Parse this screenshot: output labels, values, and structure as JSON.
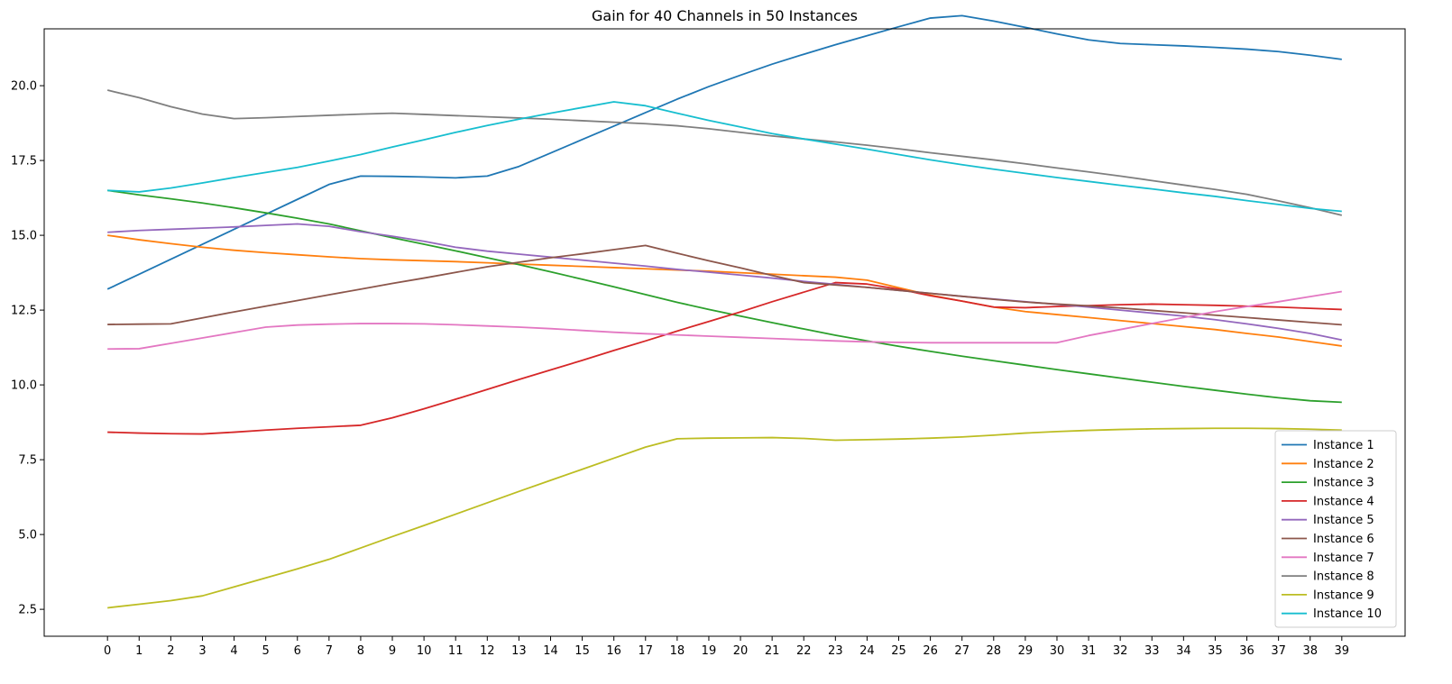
{
  "chart_data": {
    "type": "line",
    "title": "Gain for 40 Channels in 50 Instances",
    "xlabel": "",
    "ylabel": "",
    "x": [
      0,
      1,
      2,
      3,
      4,
      5,
      6,
      7,
      8,
      9,
      10,
      11,
      12,
      13,
      14,
      15,
      16,
      17,
      18,
      19,
      20,
      21,
      22,
      23,
      24,
      25,
      26,
      27,
      28,
      29,
      30,
      31,
      32,
      33,
      34,
      35,
      36,
      37,
      38,
      39
    ],
    "xlim": [
      -2,
      41
    ],
    "ylim": [
      1.6,
      21.9
    ],
    "yticks": [
      2.5,
      5.0,
      7.5,
      10.0,
      12.5,
      15.0,
      17.5,
      20.0
    ],
    "ytick_labels": [
      "2.5",
      "5.0",
      "7.5",
      "10.0",
      "12.5",
      "15.0",
      "17.5",
      "20.0"
    ],
    "grid": false,
    "legend_position": "lower-right",
    "series": [
      {
        "name": "Instance 1",
        "color": "#1f77b4",
        "values": [
          13.2,
          13.7,
          14.2,
          14.7,
          15.2,
          15.7,
          16.2,
          16.7,
          16.98,
          16.97,
          16.95,
          16.92,
          16.98,
          17.3,
          17.75,
          18.2,
          18.65,
          19.1,
          19.55,
          19.97,
          20.35,
          20.72,
          21.05,
          21.37,
          21.67,
          21.97,
          22.26,
          22.34,
          22.16,
          21.95,
          21.73,
          21.53,
          21.41,
          21.37,
          21.33,
          21.28,
          21.22,
          21.14,
          21.02,
          20.88
        ]
      },
      {
        "name": "Instance 2",
        "color": "#ff7f0e",
        "values": [
          15.0,
          14.85,
          14.72,
          14.6,
          14.5,
          14.42,
          14.35,
          14.28,
          14.22,
          14.18,
          14.15,
          14.12,
          14.08,
          14.04,
          14.0,
          13.96,
          13.92,
          13.88,
          13.84,
          13.8,
          13.75,
          13.7,
          13.65,
          13.6,
          13.5,
          13.25,
          13.0,
          12.8,
          12.6,
          12.45,
          12.35,
          12.25,
          12.15,
          12.05,
          11.95,
          11.85,
          11.72,
          11.6,
          11.45,
          11.3
        ]
      },
      {
        "name": "Instance 3",
        "color": "#2ca02c",
        "values": [
          16.5,
          16.35,
          16.22,
          16.08,
          15.92,
          15.75,
          15.57,
          15.38,
          15.15,
          14.92,
          14.7,
          14.48,
          14.25,
          14.02,
          13.78,
          13.53,
          13.28,
          13.02,
          12.76,
          12.52,
          12.3,
          12.08,
          11.87,
          11.66,
          11.47,
          11.29,
          11.12,
          10.96,
          10.81,
          10.66,
          10.51,
          10.37,
          10.23,
          10.09,
          9.95,
          9.82,
          9.69,
          9.57,
          9.47,
          9.42
        ]
      },
      {
        "name": "Instance 4",
        "color": "#d62728",
        "values": [
          8.42,
          8.39,
          8.37,
          8.36,
          8.42,
          8.49,
          8.55,
          8.6,
          8.65,
          8.9,
          9.2,
          9.52,
          9.85,
          10.18,
          10.5,
          10.82,
          11.15,
          11.47,
          11.8,
          12.12,
          12.44,
          12.78,
          13.1,
          13.42,
          13.37,
          13.2,
          12.98,
          12.8,
          12.6,
          12.58,
          12.62,
          12.65,
          12.68,
          12.7,
          12.68,
          12.66,
          12.63,
          12.6,
          12.56,
          12.52
        ]
      },
      {
        "name": "Instance 5",
        "color": "#9467bd",
        "values": [
          15.1,
          15.16,
          15.2,
          15.24,
          15.28,
          15.33,
          15.38,
          15.3,
          15.12,
          14.97,
          14.8,
          14.6,
          14.47,
          14.37,
          14.27,
          14.17,
          14.07,
          13.97,
          13.86,
          13.77,
          13.67,
          13.57,
          13.46,
          13.36,
          13.26,
          13.16,
          13.06,
          12.96,
          12.87,
          12.78,
          12.69,
          12.6,
          12.5,
          12.4,
          12.3,
          12.18,
          12.04,
          11.89,
          11.72,
          11.5
        ]
      },
      {
        "name": "Instance 6",
        "color": "#8c564b",
        "values": [
          12.02,
          12.03,
          12.04,
          12.24,
          12.44,
          12.63,
          12.82,
          13.01,
          13.2,
          13.39,
          13.57,
          13.76,
          13.95,
          14.1,
          14.25,
          14.38,
          14.52,
          14.66,
          14.4,
          14.15,
          13.91,
          13.66,
          13.42,
          13.34,
          13.26,
          13.16,
          13.06,
          12.96,
          12.86,
          12.77,
          12.7,
          12.64,
          12.57,
          12.49,
          12.41,
          12.33,
          12.25,
          12.17,
          12.09,
          12.01
        ]
      },
      {
        "name": "Instance 7",
        "color": "#e377c2",
        "values": [
          11.2,
          11.21,
          11.39,
          11.57,
          11.75,
          11.93,
          12.0,
          12.03,
          12.05,
          12.05,
          12.04,
          12.01,
          11.97,
          11.93,
          11.88,
          11.82,
          11.76,
          11.71,
          11.67,
          11.63,
          11.59,
          11.55,
          11.51,
          11.47,
          11.44,
          11.42,
          11.41,
          11.41,
          11.41,
          11.41,
          11.41,
          11.65,
          11.85,
          12.05,
          12.25,
          12.45,
          12.62,
          12.78,
          12.95,
          13.12
        ]
      },
      {
        "name": "Instance 8",
        "color": "#7f7f7f",
        "values": [
          19.85,
          19.6,
          19.3,
          19.05,
          18.9,
          18.93,
          18.97,
          19.01,
          19.05,
          19.08,
          19.04,
          19.0,
          18.96,
          18.92,
          18.88,
          18.83,
          18.78,
          18.73,
          18.66,
          18.56,
          18.44,
          18.32,
          18.22,
          18.12,
          18.01,
          17.89,
          17.76,
          17.64,
          17.52,
          17.39,
          17.25,
          17.12,
          16.98,
          16.83,
          16.68,
          16.53,
          16.37,
          16.15,
          15.92,
          15.67
        ]
      },
      {
        "name": "Instance 9",
        "color": "#bcbd22",
        "values": [
          2.55,
          2.67,
          2.79,
          2.95,
          3.25,
          3.55,
          3.85,
          4.17,
          4.55,
          4.93,
          5.3,
          5.68,
          6.06,
          6.44,
          6.81,
          7.18,
          7.55,
          7.92,
          8.2,
          8.22,
          8.23,
          8.24,
          8.21,
          8.15,
          8.17,
          8.19,
          8.22,
          8.26,
          8.32,
          8.39,
          8.44,
          8.48,
          8.51,
          8.53,
          8.54,
          8.55,
          8.55,
          8.54,
          8.52,
          8.49
        ]
      },
      {
        "name": "Instance 10",
        "color": "#17becf",
        "values": [
          16.5,
          16.45,
          16.58,
          16.75,
          16.93,
          17.1,
          17.27,
          17.48,
          17.7,
          17.95,
          18.19,
          18.44,
          18.67,
          18.88,
          19.08,
          19.27,
          19.46,
          19.33,
          19.08,
          18.84,
          18.62,
          18.4,
          18.22,
          18.05,
          17.88,
          17.7,
          17.52,
          17.36,
          17.21,
          17.07,
          16.93,
          16.8,
          16.67,
          16.55,
          16.42,
          16.3,
          16.16,
          16.03,
          15.9,
          15.8
        ]
      }
    ]
  }
}
